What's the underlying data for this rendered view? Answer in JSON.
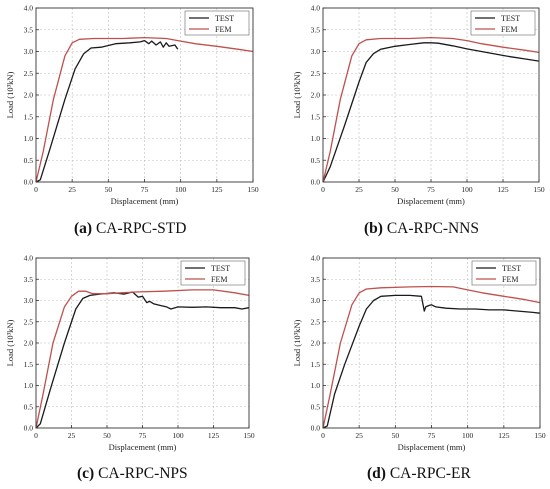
{
  "series_colors": {
    "TEST": "#1a1a1a",
    "FEM": "#c0504d"
  },
  "panels": [
    {
      "letter": "(a)",
      "name": "CA-RPC-STD",
      "chart_data": {
        "type": "line",
        "xlabel": "Displacement (mm)",
        "ylabel": "Load (10³kN)",
        "xlim": [
          0,
          150
        ],
        "ylim": [
          0,
          4.0
        ],
        "xticks": [
          "0",
          "25",
          "50",
          "75",
          "100",
          "125",
          "150"
        ],
        "yticks": [
          "0.0",
          "0.5",
          "1.0",
          "1.5",
          "2.0",
          "2.5",
          "3.0",
          "3.5",
          "4.0"
        ],
        "grid": true,
        "legend": "top-right",
        "series": [
          {
            "name": "TEST",
            "x": [
              0,
              3,
              10,
              20,
              27,
              33,
              38,
              45,
              55,
              65,
              72,
              75,
              78,
              80,
              83,
              86,
              88,
              90,
              92,
              96,
              98
            ],
            "y": [
              0,
              0.05,
              0.8,
              1.9,
              2.6,
              2.95,
              3.08,
              3.1,
              3.18,
              3.2,
              3.22,
              3.25,
              3.18,
              3.24,
              3.15,
              3.22,
              3.1,
              3.2,
              3.12,
              3.15,
              3.05
            ]
          },
          {
            "name": "FEM",
            "x": [
              0,
              5,
              12,
              20,
              25,
              30,
              40,
              60,
              75,
              90,
              100,
              110,
              125,
              140,
              150
            ],
            "y": [
              0,
              0.7,
              1.9,
              2.9,
              3.2,
              3.28,
              3.3,
              3.3,
              3.32,
              3.3,
              3.24,
              3.18,
              3.12,
              3.05,
              3.0
            ]
          }
        ]
      }
    },
    {
      "letter": "(b)",
      "name": "CA-RPC-NNS",
      "chart_data": {
        "type": "line",
        "xlabel": "Displacement (mm)",
        "ylabel": "Load (10³kN)",
        "xlim": [
          0,
          150
        ],
        "ylim": [
          0,
          4.0
        ],
        "xticks": [
          "0",
          "25",
          "50",
          "75",
          "100",
          "125",
          "150"
        ],
        "yticks": [
          "0.0",
          "0.5",
          "1.0",
          "1.5",
          "2.0",
          "2.5",
          "3.0",
          "3.5",
          "4.0"
        ],
        "grid": true,
        "legend": "top-right",
        "series": [
          {
            "name": "TEST",
            "x": [
              0,
              5,
              15,
              25,
              30,
              35,
              40,
              50,
              60,
              70,
              75,
              80,
              90,
              100,
              110,
              120,
              130,
              140,
              150
            ],
            "y": [
              0,
              0.35,
              1.3,
              2.3,
              2.75,
              2.95,
              3.05,
              3.12,
              3.16,
              3.2,
              3.2,
              3.19,
              3.13,
              3.06,
              3.0,
              2.94,
              2.88,
              2.83,
              2.78
            ]
          },
          {
            "name": "FEM",
            "x": [
              0,
              5,
              12,
              20,
              25,
              30,
              40,
              60,
              75,
              90,
              100,
              110,
              125,
              140,
              150
            ],
            "y": [
              0,
              0.7,
              1.9,
              2.9,
              3.18,
              3.27,
              3.3,
              3.3,
              3.32,
              3.3,
              3.25,
              3.18,
              3.1,
              3.03,
              2.98
            ]
          }
        ]
      }
    },
    {
      "letter": "(c)",
      "name": "CA-RPC-NPS",
      "chart_data": {
        "type": "line",
        "xlabel": "Displacement (mm)",
        "ylabel": "Load (10³kN)",
        "xlim": [
          0,
          150
        ],
        "ylim": [
          0,
          4.0
        ],
        "xticks": [
          "0",
          "25",
          "50",
          "75",
          "100",
          "125",
          "150"
        ],
        "yticks": [
          "0.0",
          "0.5",
          "1.0",
          "1.5",
          "2.0",
          "2.5",
          "3.0",
          "3.5",
          "4.0"
        ],
        "grid": true,
        "legend": "top-right",
        "series": [
          {
            "name": "TEST",
            "x": [
              0,
              3,
              10,
              20,
              28,
              33,
              38,
              45,
              55,
              62,
              68,
              72,
              75,
              78,
              80,
              83,
              88,
              92,
              95,
              100,
              110,
              120,
              130,
              140,
              145,
              150
            ],
            "y": [
              0,
              0.1,
              0.9,
              2.0,
              2.8,
              3.05,
              3.12,
              3.15,
              3.18,
              3.15,
              3.2,
              3.08,
              3.1,
              2.95,
              2.98,
              2.92,
              2.88,
              2.85,
              2.8,
              2.85,
              2.84,
              2.85,
              2.83,
              2.83,
              2.8,
              2.83
            ]
          },
          {
            "name": "FEM",
            "x": [
              0,
              5,
              12,
              20,
              25,
              30,
              35,
              40,
              50,
              70,
              90,
              110,
              125,
              140,
              150
            ],
            "y": [
              0,
              0.8,
              2.0,
              2.85,
              3.1,
              3.22,
              3.22,
              3.16,
              3.16,
              3.2,
              3.22,
              3.25,
              3.25,
              3.18,
              3.12
            ]
          }
        ]
      }
    },
    {
      "letter": "(d)",
      "name": "CA-RPC-ER",
      "chart_data": {
        "type": "line",
        "xlabel": "Displacement (mm)",
        "ylabel": "Load (10³kN)",
        "xlim": [
          0,
          150
        ],
        "ylim": [
          0,
          4.0
        ],
        "xticks": [
          "0",
          "25",
          "50",
          "75",
          "100",
          "125",
          "150"
        ],
        "yticks": [
          "0.0",
          "0.5",
          "1.0",
          "1.5",
          "2.0",
          "2.5",
          "3.0",
          "3.5",
          "4.0"
        ],
        "grid": true,
        "legend": "top-right",
        "series": [
          {
            "name": "TEST",
            "x": [
              0,
              3,
              8,
              15,
              25,
              30,
              35,
              40,
              50,
              60,
              68,
              70,
              71,
              73,
              75,
              78,
              85,
              95,
              105,
              115,
              125,
              135,
              145,
              150
            ],
            "y": [
              0,
              0.05,
              0.8,
              1.5,
              2.4,
              2.8,
              3.0,
              3.1,
              3.12,
              3.12,
              3.1,
              2.75,
              2.85,
              2.88,
              2.9,
              2.85,
              2.82,
              2.8,
              2.8,
              2.78,
              2.78,
              2.75,
              2.72,
              2.7
            ]
          },
          {
            "name": "FEM",
            "x": [
              0,
              5,
              12,
              20,
              25,
              30,
              40,
              60,
              75,
              90,
              100,
              110,
              125,
              140,
              150
            ],
            "y": [
              0,
              0.8,
              2.0,
              2.9,
              3.18,
              3.27,
              3.3,
              3.32,
              3.33,
              3.32,
              3.25,
              3.18,
              3.1,
              3.02,
              2.95
            ]
          }
        ]
      }
    }
  ]
}
